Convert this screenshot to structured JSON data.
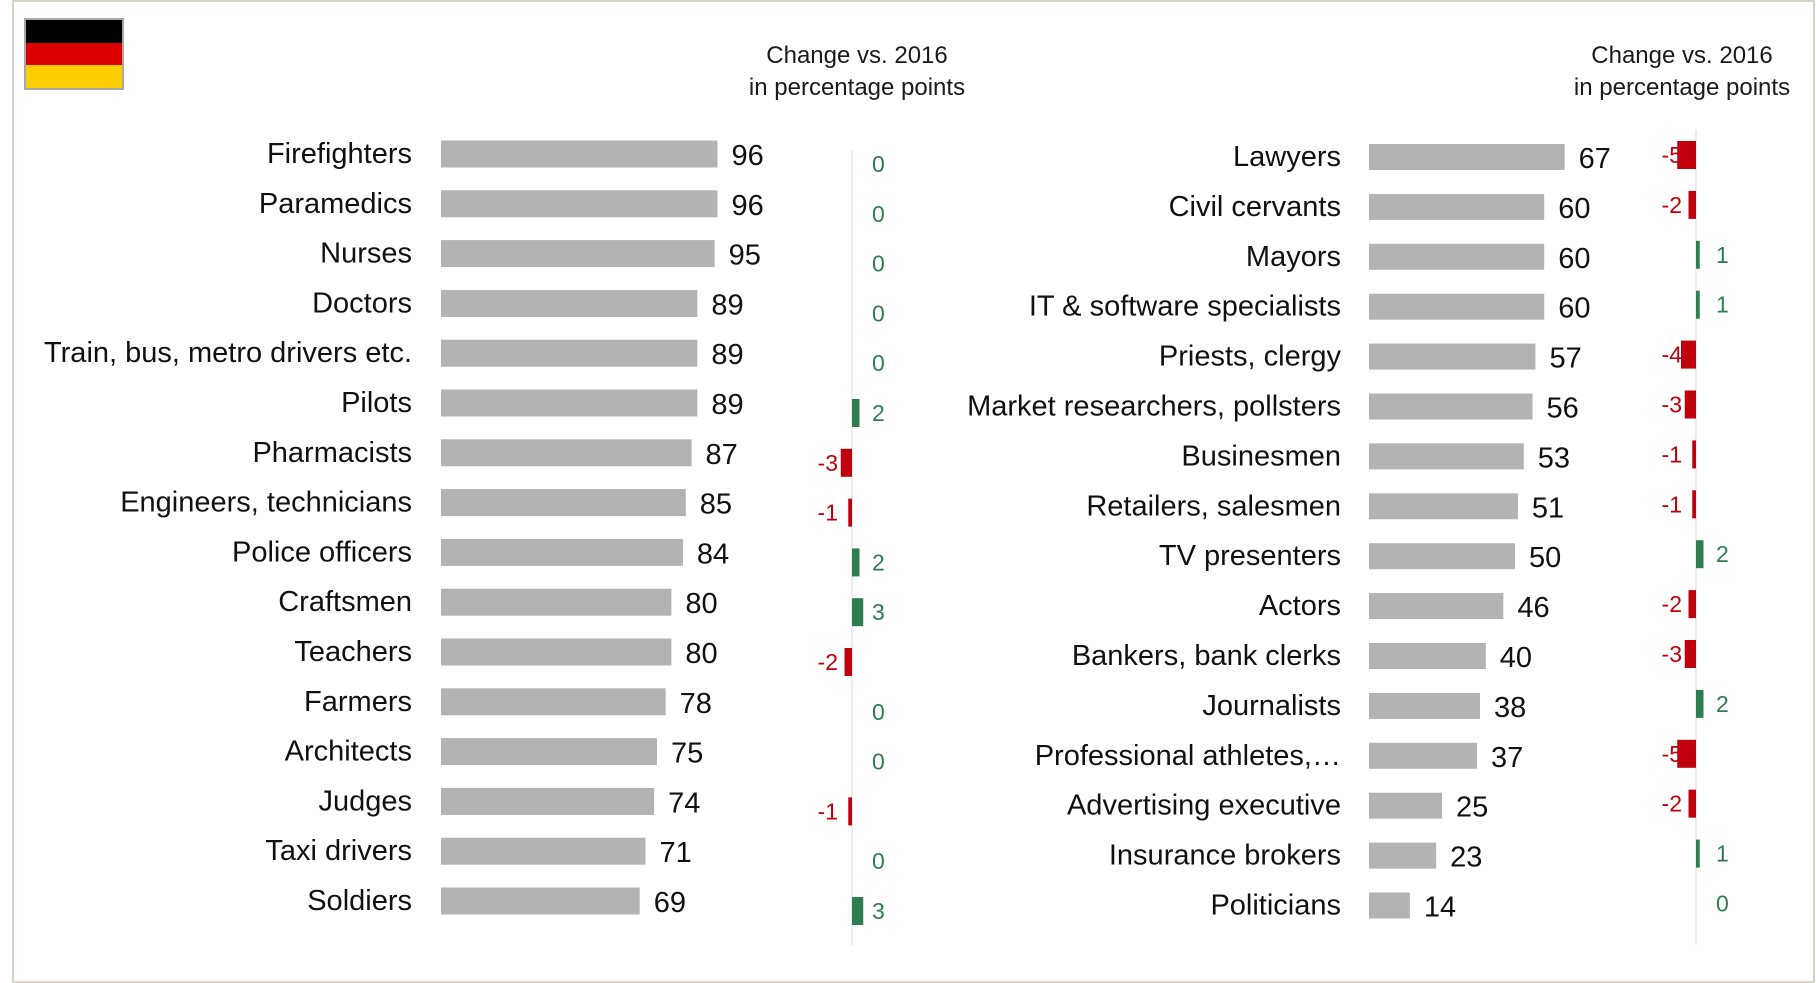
{
  "headers": {
    "left": [
      "Change vs. 2016",
      "in percentage points"
    ],
    "right": [
      "Change vs. 2016",
      "in percentage points"
    ]
  },
  "flag": {
    "colors": [
      "#000000",
      "#dd0000",
      "#ffce00"
    ]
  },
  "colors": {
    "bar": "#b3b3b3",
    "positive": "#2e7d4f",
    "negative": "#c0000c",
    "axis": "#d9d9d9"
  },
  "chart_data": [
    {
      "type": "bar",
      "orientation": "horizontal",
      "categories": [
        "Firefighters",
        "Paramedics",
        "Nurses",
        "Doctors",
        "Train, bus, metro drivers etc.",
        "Pilots",
        "Pharmacists",
        "Engineers, technicians",
        "Police officers",
        "Craftsmen",
        "Teachers",
        "Farmers",
        "Architects",
        "Judges",
        "Taxi drivers",
        "Soldiers"
      ],
      "values": [
        96,
        96,
        95,
        89,
        89,
        89,
        87,
        85,
        84,
        80,
        80,
        78,
        75,
        74,
        71,
        69
      ],
      "changes": [
        0,
        0,
        0,
        0,
        0,
        2,
        -3,
        -1,
        2,
        3,
        -2,
        0,
        0,
        -1,
        0,
        3
      ]
    },
    {
      "type": "bar",
      "orientation": "horizontal",
      "categories": [
        "Lawyers",
        "Civil cervants",
        "Mayors",
        "IT & software specialists",
        "Priests, clergy",
        "Market researchers, pollsters",
        "Businesmen",
        "Retailers, salesmen",
        "TV presenters",
        "Actors",
        "Bankers, bank clerks",
        "Journalists",
        "Professional athletes,…",
        "Advertising executive",
        "Insurance brokers",
        "Politicians"
      ],
      "values": [
        67,
        60,
        60,
        60,
        57,
        56,
        53,
        51,
        50,
        46,
        40,
        38,
        37,
        25,
        23,
        14
      ],
      "changes": [
        -5,
        -2,
        1,
        1,
        -4,
        -3,
        -1,
        -1,
        2,
        -2,
        -3,
        2,
        -5,
        -2,
        1,
        0
      ]
    }
  ]
}
